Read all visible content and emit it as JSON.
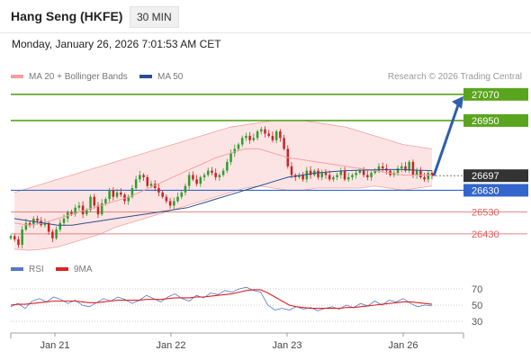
{
  "header": {
    "title": "Hang Seng (HKFE)",
    "timeframe": "30 MIN"
  },
  "datetime": "Monday, January 26, 2026 7:01:53 AM CET",
  "legend": {
    "bollinger": "MA 20 + Bollinger Bands",
    "ma50": "MA 50",
    "rsi": "RSI",
    "rsi_ma": "9MA",
    "credit": "Research © 2026 Trading Central"
  },
  "colors": {
    "bollinger": "#f3a0a0",
    "band_fill": "#fde4e4",
    "ma50": "#2c4f8c",
    "up": "#2e9e2e",
    "down": "#cc2222",
    "target_green": "#5aa51e",
    "pivot_blue": "#3366cc",
    "support_red": "#e06060",
    "arrow": "#2f5fa8",
    "current": "#333333",
    "rsi": "#5577cc",
    "rsi_ma": "#dd2222"
  },
  "chart_data": [
    {
      "type": "candlestick",
      "x_ticks": [
        "Jan 21",
        "Jan 22",
        "Jan 23",
        "Jan 26"
      ],
      "ylim": [
        26380,
        27090
      ],
      "levels": [
        {
          "name": "target-2",
          "value": 27070,
          "label": "27070",
          "kind": "resistance"
        },
        {
          "name": "target-1",
          "value": 26950,
          "label": "26950",
          "kind": "resistance"
        },
        {
          "name": "current-price",
          "value": 26697,
          "label": "26697",
          "kind": "current"
        },
        {
          "name": "pivot",
          "value": 26630,
          "label": "26630",
          "kind": "pivot"
        },
        {
          "name": "support-1",
          "value": 26530,
          "label": "26530",
          "kind": "support"
        },
        {
          "name": "support-2",
          "value": 26430,
          "label": "26430",
          "kind": "support"
        }
      ],
      "close": [
        26420,
        26405,
        26380,
        26450,
        26480,
        26470,
        26500,
        26490,
        26470,
        26480,
        26440,
        26410,
        26450,
        26480,
        26500,
        26530,
        26520,
        26550,
        26560,
        26520,
        26540,
        26600,
        26560,
        26520,
        26570,
        26590,
        26630,
        26600,
        26620,
        26610,
        26580,
        26600,
        26640,
        26680,
        26700,
        26690,
        26650,
        26660,
        26640,
        26620,
        26600,
        26580,
        26560,
        26580,
        26600,
        26620,
        26650,
        26700,
        26680,
        26660,
        26690,
        26700,
        26720,
        26710,
        26690,
        26700,
        26720,
        26760,
        26800,
        26820,
        26840,
        26870,
        26880,
        26860,
        26870,
        26900,
        26910,
        26890,
        26880,
        26860,
        26900,
        26870,
        26820,
        26740,
        26700,
        26690,
        26700,
        26680,
        26720,
        26700,
        26720,
        26690,
        26710,
        26700,
        26680,
        26690,
        26700,
        26720,
        26680,
        26690,
        26700,
        26710,
        26720,
        26700,
        26690,
        26710,
        26720,
        26740,
        26730,
        26720,
        26700,
        26710,
        26730,
        26740,
        26720,
        26760,
        26700,
        26720,
        26690,
        26680,
        26710,
        26697
      ],
      "bb_upper": [
        26620,
        26640,
        26660,
        26680,
        26700,
        26720,
        26740,
        26760,
        26780,
        26800,
        26820,
        26840,
        26860,
        26880,
        26900,
        26920,
        26930,
        26940,
        26950,
        26950,
        26950,
        26940,
        26930,
        26920,
        26900,
        26880,
        26860,
        26840,
        26830,
        26820
      ],
      "bb_lower": [
        26360,
        26355,
        26360,
        26370,
        26390,
        26410,
        26430,
        26460,
        26480,
        26500,
        26520,
        26540,
        26560,
        26580,
        26600,
        26620,
        26640,
        26650,
        26640,
        26630,
        26630,
        26640,
        26640,
        26640,
        26640,
        26650,
        26640,
        26630,
        26640,
        26650
      ],
      "bb_middle": [
        26480,
        26470,
        26480,
        26500,
        26520,
        26540,
        26560,
        26580,
        26600,
        26630,
        26660,
        26690,
        26720,
        26750,
        26780,
        26800,
        26820,
        26820,
        26800,
        26780,
        26770,
        26760,
        26750,
        26740,
        26730,
        26720,
        26710,
        26700,
        26700,
        26700
      ],
      "ma50": [
        26500,
        26490,
        26480,
        26470,
        26470,
        26480,
        26490,
        26500,
        26510,
        26520,
        26530,
        26540,
        26550,
        26570,
        26590,
        26610,
        26630,
        26650,
        26670,
        26690,
        26700,
        26710,
        26715,
        26720,
        26722,
        26724,
        26725,
        26725,
        26722,
        26720
      ],
      "forecast": {
        "from": 26697,
        "to": 27070
      }
    },
    {
      "type": "line",
      "name": "RSI panel",
      "ylim": [
        20,
        80
      ],
      "y_ticks": [
        70,
        50,
        30
      ],
      "x_ticks": [
        "Jan 21",
        "Jan 22",
        "Jan 23",
        "Jan 26"
      ],
      "series": [
        {
          "name": "RSI",
          "values": [
            48,
            52,
            46,
            55,
            58,
            54,
            60,
            57,
            52,
            56,
            50,
            48,
            53,
            58,
            55,
            60,
            57,
            52,
            56,
            62,
            58,
            54,
            60,
            64,
            58,
            55,
            62,
            59,
            65,
            63,
            68,
            66,
            70,
            72,
            68,
            66,
            50,
            44,
            46,
            44,
            48,
            45,
            47,
            43,
            46,
            48,
            45,
            50,
            47,
            52,
            49,
            55,
            50,
            56,
            54,
            58,
            52,
            48,
            50,
            49
          ]
        },
        {
          "name": "9MA",
          "values": [
            50,
            51,
            51,
            52,
            53,
            54,
            55,
            55,
            55,
            55,
            54,
            53,
            53,
            54,
            55,
            56,
            56,
            56,
            56,
            57,
            57,
            57,
            58,
            59,
            59,
            59,
            60,
            60,
            61,
            62,
            63,
            64,
            66,
            68,
            69,
            69,
            65,
            60,
            55,
            50,
            48,
            47,
            46,
            46,
            46,
            46,
            46,
            47,
            47,
            48,
            49,
            50,
            51,
            52,
            53,
            54,
            54,
            53,
            52,
            51
          ]
        }
      ]
    }
  ]
}
